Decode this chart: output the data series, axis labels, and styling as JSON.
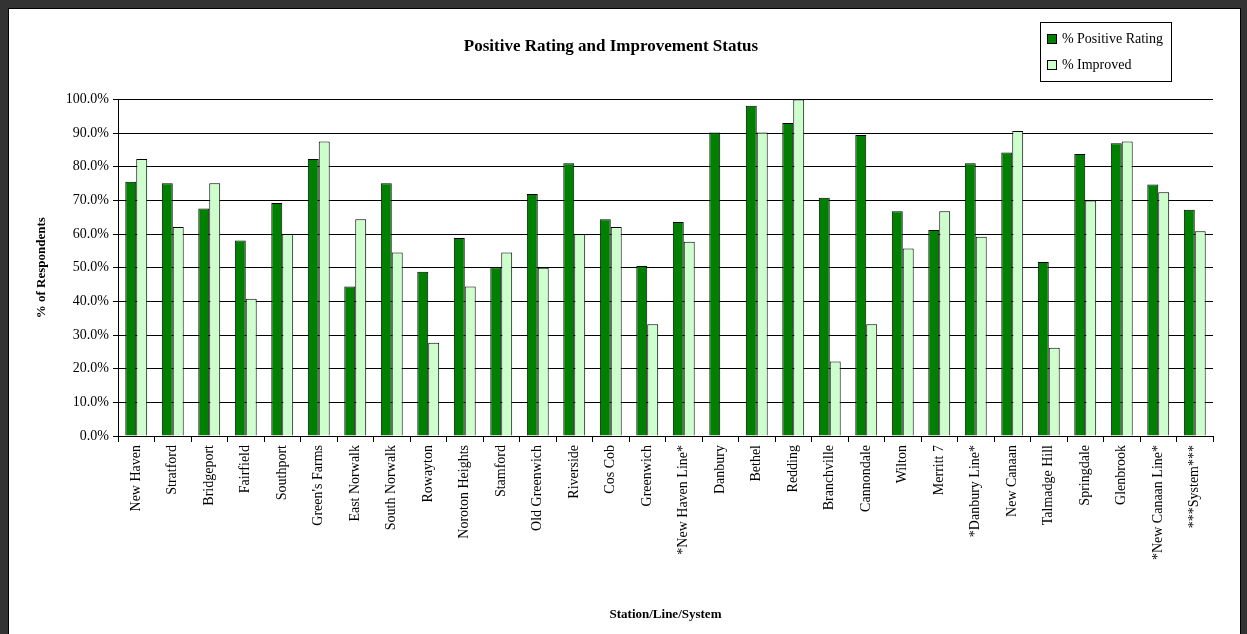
{
  "chart_data": {
    "type": "bar",
    "title": "Positive Rating and Improvement Status",
    "xlabel": "Station/Line/System",
    "ylabel": "% of Respondents",
    "categories": [
      "New Haven",
      "Stratford",
      "Bridgeport",
      "Fairfield",
      "Southport",
      "Green's Farms",
      "East Norwalk",
      "South Norwalk",
      "Rowayton",
      "Noroton Heights",
      "Stamford",
      "Old Greenwich",
      "Riverside",
      "Cos Cob",
      "Greenwich",
      "*New Haven Line*",
      "Danbury",
      "Bethel",
      "Redding",
      "Branchville",
      "Cannondale",
      "Wilton",
      "Merritt 7",
      "*Danbury Line*",
      "New Canaan",
      "Talmadge Hill",
      "Springdale",
      "Glenbrook",
      "*New Canaan Line*",
      "***System***"
    ],
    "series": [
      {
        "name": "% Positive Rating",
        "color": "#008000",
        "values": [
          75.5,
          75.1,
          67.6,
          58.1,
          69.2,
          82.3,
          44.4,
          75.1,
          48.8,
          58.8,
          50.1,
          71.9,
          81.0,
          64.4,
          50.5,
          63.6,
          90.2,
          98.1,
          93.0,
          70.8,
          89.4,
          66.8,
          61.2,
          81.0,
          84.2,
          51.7,
          83.8,
          87.0,
          74.7,
          67.2
        ]
      },
      {
        "name": "% Improved",
        "color": "#ccffcc",
        "values": [
          82.3,
          62.1,
          75.1,
          40.8,
          60.0,
          87.5,
          64.4,
          54.5,
          27.7,
          44.4,
          54.5,
          50.0,
          60.0,
          62.1,
          33.2,
          57.7,
          null,
          90.2,
          100.0,
          22.1,
          33.2,
          55.7,
          66.8,
          59.2,
          90.6,
          26.2,
          70.0,
          87.5,
          72.4,
          60.8
        ]
      }
    ],
    "ylim": [
      0,
      100
    ],
    "yticks": [
      {
        "value": 0,
        "label": "0.0%"
      },
      {
        "value": 10,
        "label": "10.0%"
      },
      {
        "value": 20,
        "label": "20.0%"
      },
      {
        "value": 30,
        "label": "30.0%"
      },
      {
        "value": 40,
        "label": "40.0%"
      },
      {
        "value": 50,
        "label": "50.0%"
      },
      {
        "value": 60,
        "label": "60.0%"
      },
      {
        "value": 70,
        "label": "70.0%"
      },
      {
        "value": 80,
        "label": "80.0%"
      },
      {
        "value": 90,
        "label": "90.0%"
      },
      {
        "value": 100,
        "label": "100.0%"
      }
    ],
    "grid": "y",
    "legend": "top right"
  }
}
